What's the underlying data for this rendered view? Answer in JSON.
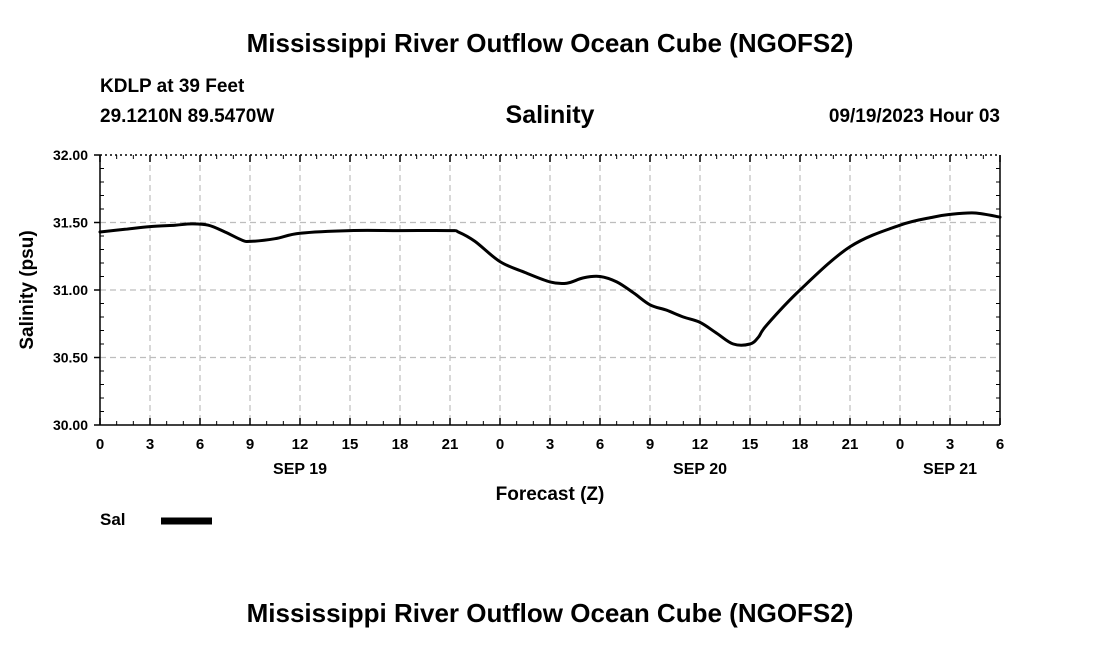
{
  "header": {
    "title": "Mississippi River Outflow Ocean Cube (NGOFS2)",
    "station": "KDLP at 39 Feet",
    "coordinates": "29.1210N  89.5470W",
    "variable": "Salinity",
    "datetime": "09/19/2023 Hour 03"
  },
  "footer": {
    "title": "Mississippi River Outflow Ocean Cube (NGOFS2)"
  },
  "legend": {
    "label": "Sal",
    "color": "#000000"
  },
  "chart_data": {
    "type": "line",
    "title": "Salinity",
    "xlabel": "Forecast (Z)",
    "ylabel": "Salinity (psu)",
    "xlim": [
      0,
      54
    ],
    "ylim": [
      30.0,
      32.0
    ],
    "grid": true,
    "yticks": [
      "30.00",
      "30.50",
      "31.00",
      "31.50",
      "32.00"
    ],
    "xticks": [
      "0",
      "3",
      "6",
      "9",
      "12",
      "15",
      "18",
      "21",
      "0",
      "3",
      "6",
      "9",
      "12",
      "15",
      "18",
      "21",
      "0",
      "3",
      "6"
    ],
    "date_labels": [
      {
        "label": "SEP 19",
        "at_hour": 12
      },
      {
        "label": "SEP 20",
        "at_hour": 36
      },
      {
        "label": "SEP 21",
        "at_hour": 51
      }
    ],
    "series": [
      {
        "name": "Sal",
        "x": [
          0,
          1.5,
          3,
          4.5,
          5.5,
          6.5,
          7.5,
          8.5,
          9,
          10.5,
          12,
          15,
          18,
          21,
          21.5,
          22.5,
          24,
          25.5,
          27,
          28,
          29,
          30,
          31,
          32,
          33,
          34,
          35,
          36,
          37,
          38,
          39,
          39.5,
          40,
          42,
          45,
          48,
          50,
          51,
          52.5,
          54
        ],
        "values": [
          31.43,
          31.45,
          31.47,
          31.48,
          31.49,
          31.48,
          31.43,
          31.37,
          31.36,
          31.38,
          31.42,
          31.44,
          31.44,
          31.44,
          31.43,
          31.36,
          31.21,
          31.13,
          31.06,
          31.05,
          31.09,
          31.1,
          31.06,
          30.98,
          30.89,
          30.85,
          30.8,
          30.76,
          30.68,
          30.6,
          30.6,
          30.65,
          30.74,
          31.0,
          31.32,
          31.48,
          31.54,
          31.56,
          31.57,
          31.54
        ]
      }
    ]
  }
}
